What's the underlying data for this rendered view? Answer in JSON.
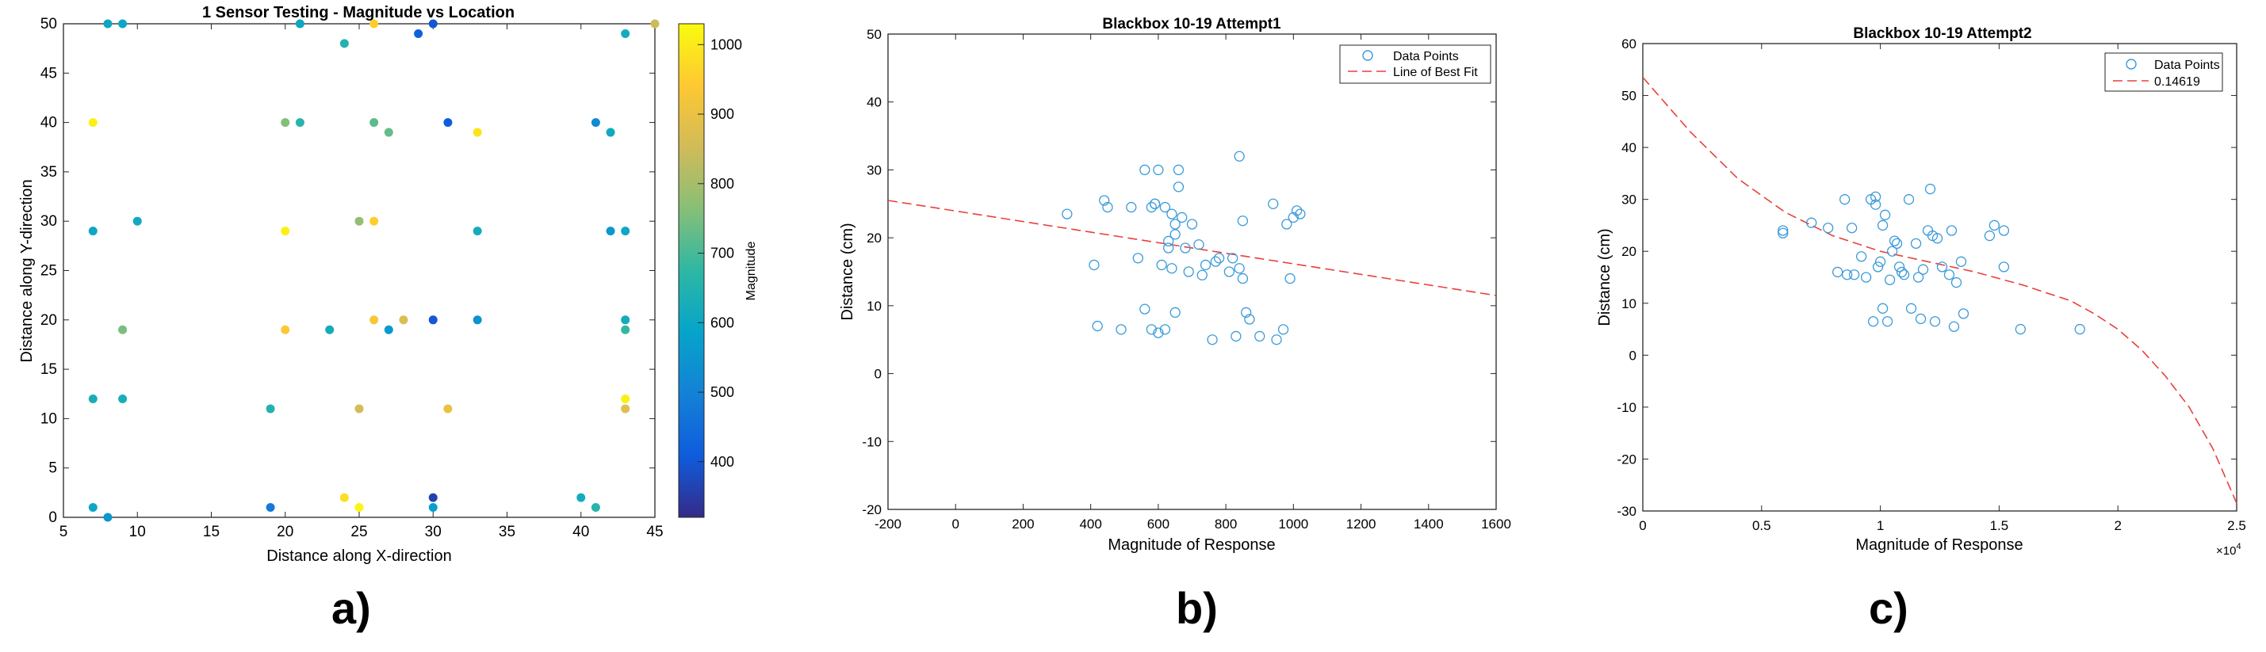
{
  "panel_labels": [
    "a)",
    "b)",
    "c)"
  ],
  "chart_data": [
    {
      "type": "scatter",
      "title": "1 Sensor Testing - Magnitude vs Location",
      "xlabel": "Distance along X-direction",
      "ylabel": "Distance along Y-direction",
      "xlim": [
        5,
        45
      ],
      "ylim": [
        0,
        50
      ],
      "xticks": [
        5,
        10,
        15,
        20,
        25,
        30,
        35,
        40,
        45
      ],
      "yticks": [
        0,
        5,
        10,
        15,
        20,
        25,
        30,
        35,
        40,
        45,
        50
      ],
      "colorbar": {
        "label": "Magnitude",
        "range": [
          320,
          1030
        ],
        "ticks": [
          400,
          500,
          600,
          700,
          800,
          900,
          1000
        ],
        "colormap": "parula"
      },
      "points": [
        {
          "x": 8,
          "y": 50,
          "m": 600
        },
        {
          "x": 9,
          "y": 50,
          "m": 600
        },
        {
          "x": 21,
          "y": 50,
          "m": 600
        },
        {
          "x": 26,
          "y": 50,
          "m": 950
        },
        {
          "x": 29,
          "y": 49,
          "m": 420
        },
        {
          "x": 30,
          "y": 50,
          "m": 400
        },
        {
          "x": 43,
          "y": 49,
          "m": 620
        },
        {
          "x": 45,
          "y": 50,
          "m": 850
        },
        {
          "x": 24,
          "y": 48,
          "m": 650
        },
        {
          "x": 7,
          "y": 40,
          "m": 1010
        },
        {
          "x": 20,
          "y": 40,
          "m": 760
        },
        {
          "x": 21,
          "y": 40,
          "m": 660
        },
        {
          "x": 26,
          "y": 40,
          "m": 720
        },
        {
          "x": 27,
          "y": 39,
          "m": 730
        },
        {
          "x": 31,
          "y": 40,
          "m": 410
        },
        {
          "x": 33,
          "y": 39,
          "m": 990
        },
        {
          "x": 41,
          "y": 40,
          "m": 520
        },
        {
          "x": 42,
          "y": 39,
          "m": 610
        },
        {
          "x": 7,
          "y": 29,
          "m": 600
        },
        {
          "x": 10,
          "y": 30,
          "m": 610
        },
        {
          "x": 20,
          "y": 29,
          "m": 1010
        },
        {
          "x": 25,
          "y": 30,
          "m": 780
        },
        {
          "x": 26,
          "y": 30,
          "m": 950
        },
        {
          "x": 33,
          "y": 29,
          "m": 620
        },
        {
          "x": 42,
          "y": 29,
          "m": 550
        },
        {
          "x": 43,
          "y": 29,
          "m": 600
        },
        {
          "x": 9,
          "y": 19,
          "m": 750
        },
        {
          "x": 20,
          "y": 19,
          "m": 940
        },
        {
          "x": 23,
          "y": 19,
          "m": 620
        },
        {
          "x": 26,
          "y": 20,
          "m": 930
        },
        {
          "x": 27,
          "y": 19,
          "m": 560
        },
        {
          "x": 28,
          "y": 20,
          "m": 870
        },
        {
          "x": 30,
          "y": 20,
          "m": 400
        },
        {
          "x": 33,
          "y": 20,
          "m": 540
        },
        {
          "x": 43,
          "y": 20,
          "m": 620
        },
        {
          "x": 43,
          "y": 19,
          "m": 680
        },
        {
          "x": 7,
          "y": 12,
          "m": 630
        },
        {
          "x": 9,
          "y": 12,
          "m": 630
        },
        {
          "x": 19,
          "y": 11,
          "m": 650
        },
        {
          "x": 25,
          "y": 11,
          "m": 860
        },
        {
          "x": 31,
          "y": 11,
          "m": 900
        },
        {
          "x": 43,
          "y": 12,
          "m": 1010
        },
        {
          "x": 43,
          "y": 11,
          "m": 880
        },
        {
          "x": 7,
          "y": 1,
          "m": 600
        },
        {
          "x": 8,
          "y": 0,
          "m": 550
        },
        {
          "x": 19,
          "y": 1,
          "m": 480
        },
        {
          "x": 24,
          "y": 2,
          "m": 980
        },
        {
          "x": 25,
          "y": 1,
          "m": 1020
        },
        {
          "x": 30,
          "y": 2,
          "m": 360
        },
        {
          "x": 30,
          "y": 1,
          "m": 570
        },
        {
          "x": 40,
          "y": 2,
          "m": 620
        },
        {
          "x": 41,
          "y": 1,
          "m": 660
        }
      ]
    },
    {
      "type": "scatter",
      "title": "Blackbox 10-19 Attempt1",
      "xlabel": "Magnitude of Response",
      "ylabel": "Distance (cm)",
      "xlim": [
        -200,
        1600
      ],
      "ylim": [
        -20,
        50
      ],
      "xticks": [
        -200,
        0,
        200,
        400,
        600,
        800,
        1000,
        1200,
        1400,
        1600
      ],
      "yticks": [
        -20,
        -10,
        0,
        10,
        20,
        30,
        40,
        50
      ],
      "legend": {
        "placement": "top-right",
        "entries": [
          "Data Points",
          "Line of Best Fit"
        ]
      },
      "fit_line": {
        "x": [
          -200,
          1600
        ],
        "y": [
          25.5,
          11.5
        ]
      },
      "series": [
        {
          "name": "Data Points",
          "x": [
            330,
            410,
            420,
            440,
            450,
            490,
            520,
            540,
            560,
            560,
            580,
            580,
            590,
            590,
            600,
            600,
            610,
            620,
            620,
            630,
            630,
            640,
            640,
            650,
            650,
            650,
            660,
            660,
            670,
            680,
            690,
            700,
            720,
            730,
            740,
            760,
            770,
            780,
            810,
            820,
            830,
            840,
            840,
            850,
            850,
            860,
            870,
            900,
            940,
            950,
            970,
            980,
            990,
            1000,
            1010,
            1020
          ],
          "y": [
            23.5,
            16,
            7,
            25.5,
            24.5,
            6.5,
            24.5,
            17,
            9.5,
            30,
            24.5,
            6.5,
            25,
            25,
            30,
            6,
            16,
            24.5,
            6.5,
            18.5,
            19.5,
            15.5,
            23.5,
            22,
            20.5,
            9,
            30,
            27.5,
            23,
            18.5,
            15,
            22,
            19,
            14.5,
            16,
            5,
            16.5,
            17,
            15,
            17,
            5.5,
            32,
            15.5,
            22.5,
            14,
            9,
            8,
            5.5,
            25,
            5,
            6.5,
            22,
            14,
            23,
            24,
            23.5
          ]
        }
      ]
    },
    {
      "type": "scatter",
      "title": "Blackbox 10-19 Attempt2",
      "xlabel": "Magnitude of Response",
      "ylabel": "Distance (cm)",
      "xlim": [
        0,
        25000
      ],
      "ylim": [
        -30,
        60
      ],
      "xticks": [
        0,
        5000,
        10000,
        15000,
        20000,
        25000
      ],
      "xtick_labels": [
        "0",
        "0.5",
        "1",
        "1.5",
        "2",
        "2.5"
      ],
      "x_exponent": "×10",
      "x_exponent_power": "4",
      "yticks": [
        -30,
        -20,
        -10,
        0,
        10,
        20,
        30,
        40,
        50,
        60
      ],
      "legend": {
        "placement": "top-right",
        "entries": [
          "Data Points",
          "0.14619"
        ]
      },
      "fit_curve": {
        "x": [
          0,
          2000,
          4000,
          6000,
          8000,
          10000,
          12000,
          14000,
          16000,
          17000,
          18000,
          19000,
          20000,
          21000,
          22000,
          23000,
          24000,
          25000
        ],
        "y": [
          53.5,
          43,
          34,
          27.5,
          23,
          20,
          18,
          16,
          13.5,
          12,
          10.5,
          8,
          5,
          1,
          -4,
          -10,
          -18,
          -28.5
        ]
      },
      "series": [
        {
          "name": "Data Points",
          "x": [
            5900,
            5900,
            7100,
            7800,
            8200,
            8500,
            8600,
            8800,
            8900,
            9200,
            9400,
            9600,
            9700,
            9800,
            9800,
            9900,
            10000,
            10100,
            10100,
            10200,
            10300,
            10400,
            10500,
            10600,
            10700,
            10800,
            10900,
            11000,
            11200,
            11300,
            11500,
            11600,
            11700,
            11800,
            12000,
            12100,
            12200,
            12300,
            12400,
            12600,
            12900,
            13000,
            13100,
            13200,
            13400,
            13500,
            14600,
            14800,
            15200,
            15200,
            15900,
            18400
          ],
          "y": [
            24,
            23.5,
            25.5,
            24.5,
            16,
            30,
            15.5,
            24.5,
            15.5,
            19,
            15,
            30,
            6.5,
            30.5,
            29,
            17,
            18,
            9,
            25,
            27,
            6.5,
            14.5,
            20,
            22,
            21.5,
            17,
            16,
            15.5,
            30,
            9,
            21.5,
            15,
            7,
            16.5,
            24,
            32,
            23,
            6.5,
            22.5,
            17,
            15.5,
            24,
            5.5,
            14,
            18,
            8,
            23,
            25,
            24,
            17,
            5,
            5
          ]
        }
      ]
    }
  ]
}
